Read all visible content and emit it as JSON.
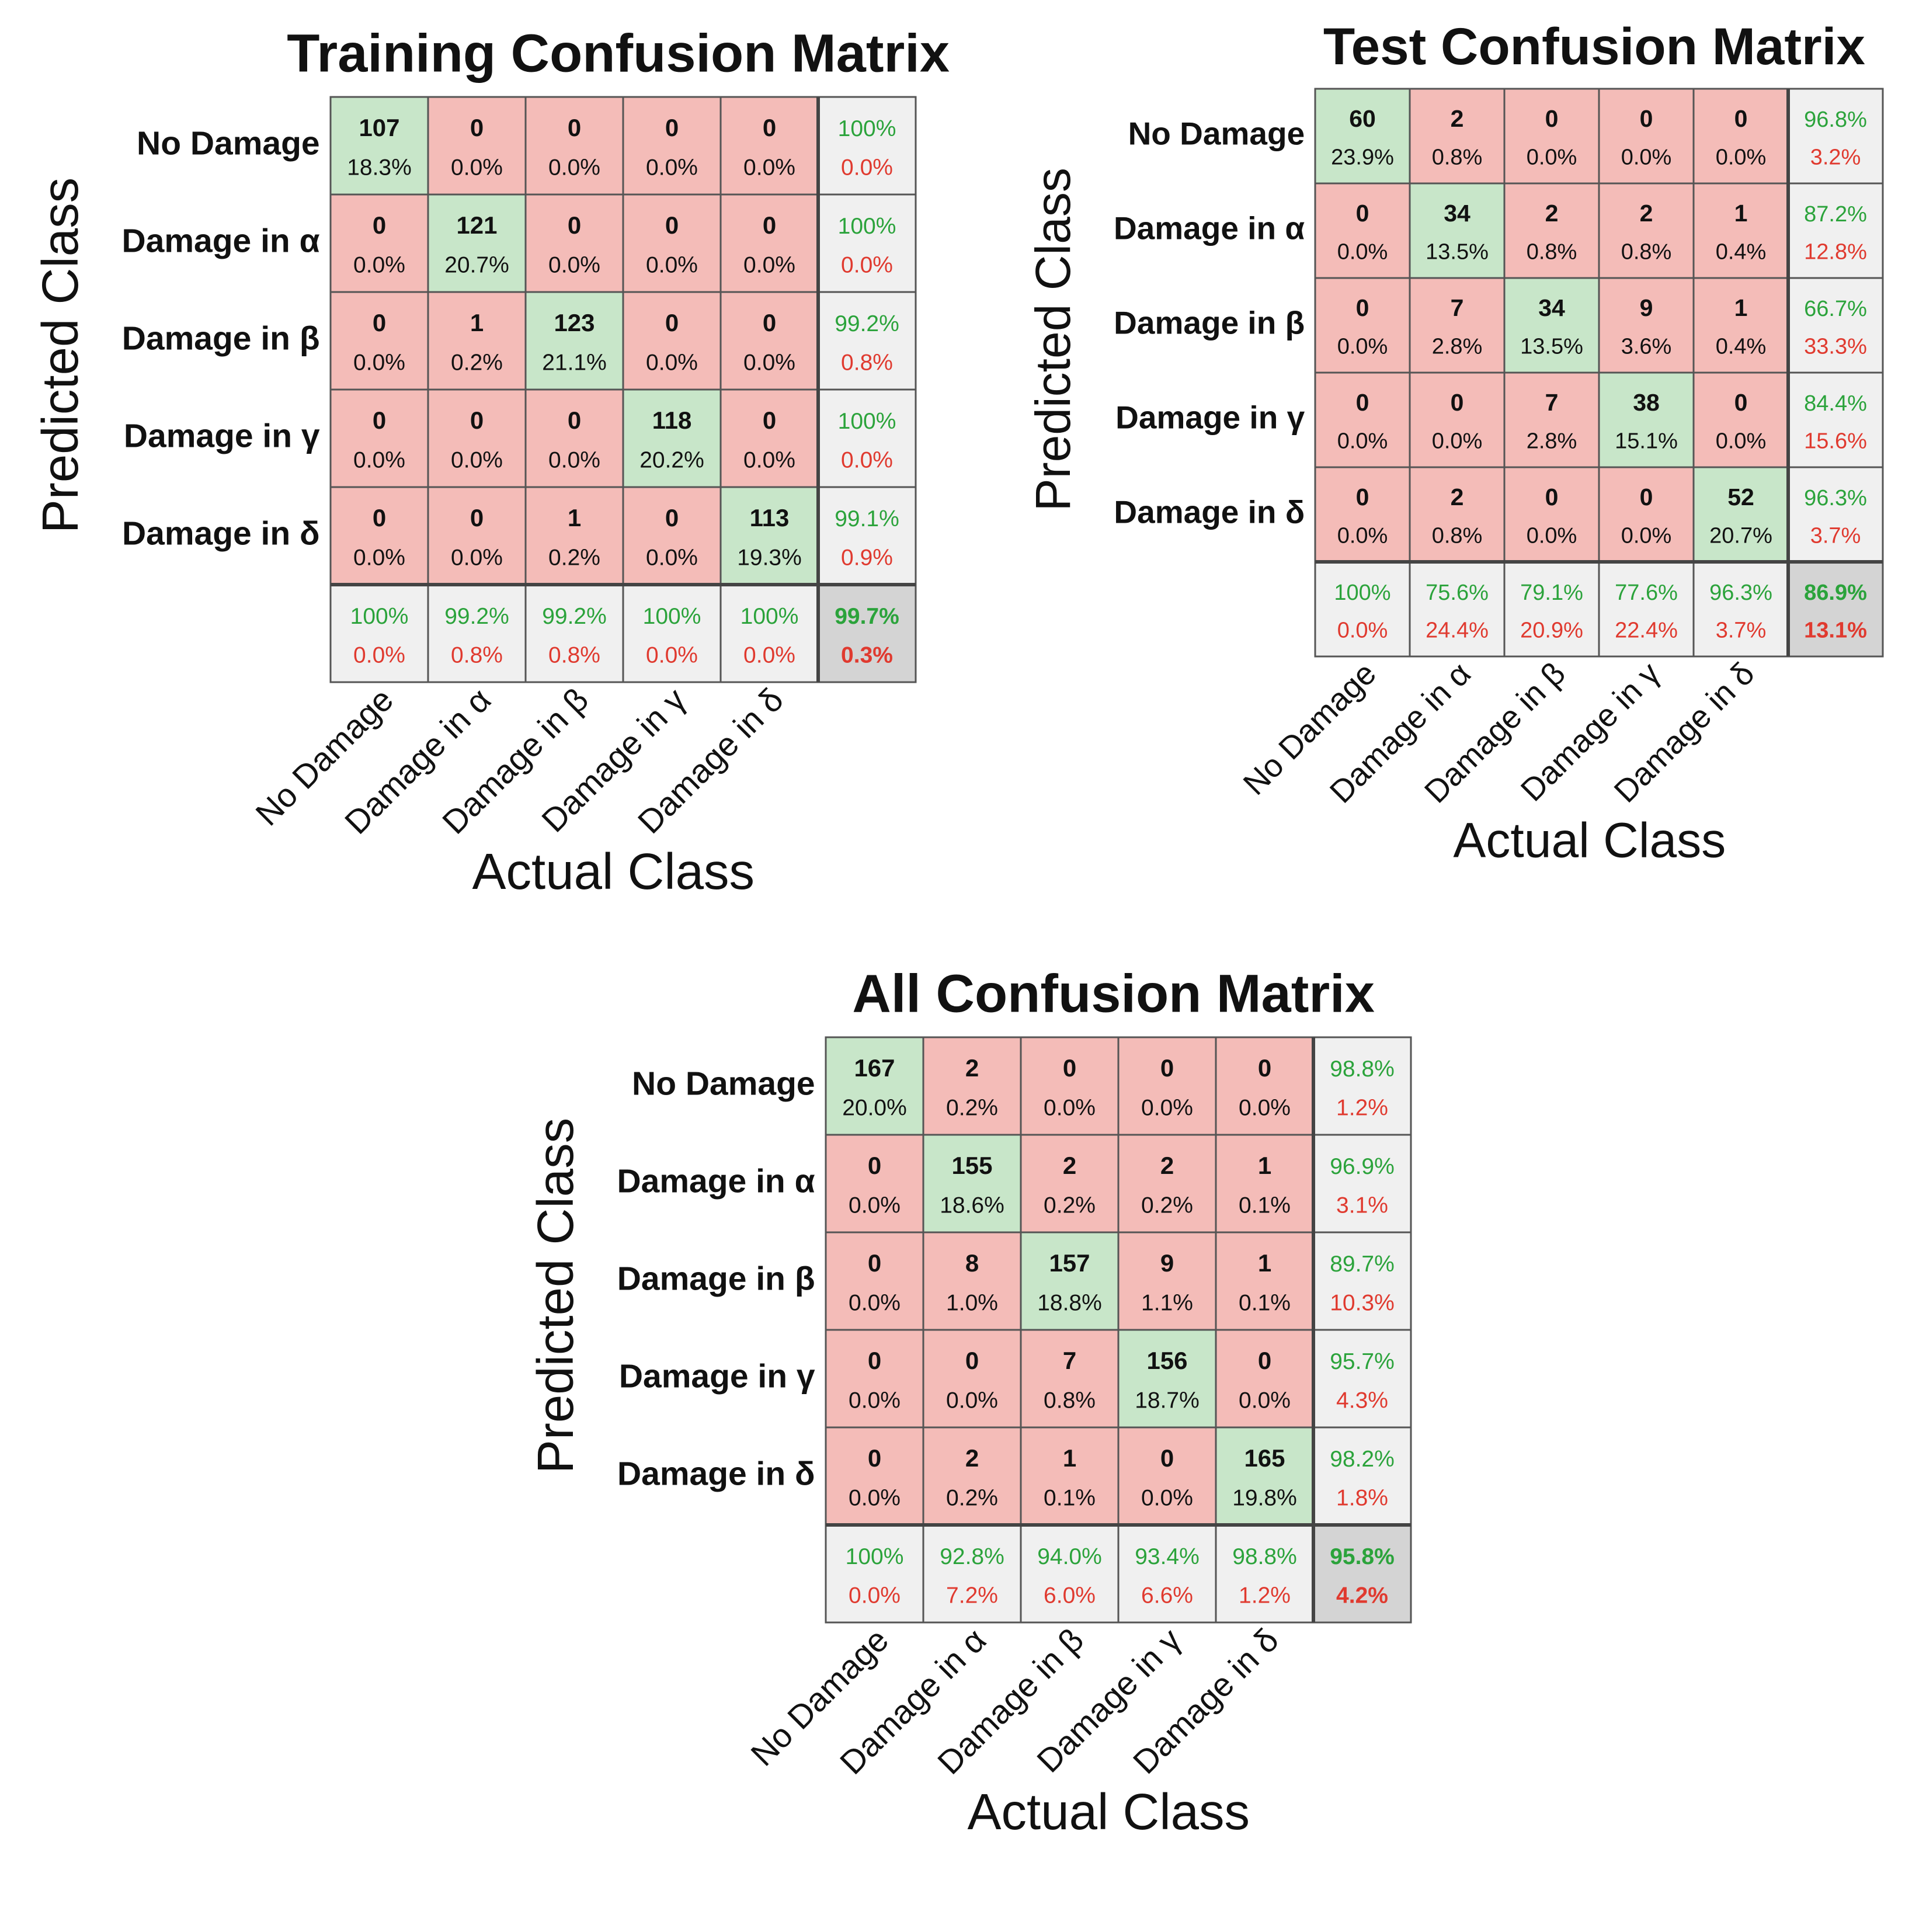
{
  "theme": {
    "correct_fill": "#c8e6c9",
    "error_fill": "#f4bcb8",
    "summary_fill": "#f0f0f0",
    "overall_fill": "#d4d4d4",
    "grid_color": "#555555",
    "text_color": "#111111",
    "green_text": "#2ba33b",
    "red_text": "#e03a2f"
  },
  "chart_data": [
    {
      "type": "heatmap",
      "title": "Training Confusion Matrix",
      "xlabel": "Actual Class",
      "ylabel": "Predicted Class",
      "row_labels": [
        "No Damage",
        "Damage in α",
        "Damage in β",
        "Damage in γ",
        "Damage in δ"
      ],
      "col_labels": [
        "No Damage",
        "Damage in α",
        "Damage in β",
        "Damage in γ",
        "Damage in δ"
      ],
      "counts": [
        [
          107,
          0,
          0,
          0,
          0
        ],
        [
          0,
          121,
          0,
          0,
          0
        ],
        [
          0,
          1,
          123,
          0,
          0
        ],
        [
          0,
          0,
          0,
          118,
          0
        ],
        [
          0,
          0,
          1,
          0,
          113
        ]
      ],
      "percents": [
        [
          "18.3%",
          "0.0%",
          "0.0%",
          "0.0%",
          "0.0%"
        ],
        [
          "0.0%",
          "20.7%",
          "0.0%",
          "0.0%",
          "0.0%"
        ],
        [
          "0.0%",
          "0.2%",
          "21.1%",
          "0.0%",
          "0.0%"
        ],
        [
          "0.0%",
          "0.0%",
          "0.0%",
          "20.2%",
          "0.0%"
        ],
        [
          "0.0%",
          "0.0%",
          "0.2%",
          "0.0%",
          "19.3%"
        ]
      ],
      "row_summary": [
        [
          "100%",
          "0.0%"
        ],
        [
          "100%",
          "0.0%"
        ],
        [
          "99.2%",
          "0.8%"
        ],
        [
          "100%",
          "0.0%"
        ],
        [
          "99.1%",
          "0.9%"
        ]
      ],
      "col_summary": [
        [
          "100%",
          "0.0%"
        ],
        [
          "99.2%",
          "0.8%"
        ],
        [
          "99.2%",
          "0.8%"
        ],
        [
          "100%",
          "0.0%"
        ],
        [
          "100%",
          "0.0%"
        ]
      ],
      "overall": [
        "99.7%",
        "0.3%"
      ]
    },
    {
      "type": "heatmap",
      "title": "Test Confusion Matrix",
      "xlabel": "Actual Class",
      "ylabel": "Predicted Class",
      "row_labels": [
        "No Damage",
        "Damage in α",
        "Damage in β",
        "Damage in γ",
        "Damage in δ"
      ],
      "col_labels": [
        "No Damage",
        "Damage in α",
        "Damage in β",
        "Damage in γ",
        "Damage in δ"
      ],
      "counts": [
        [
          60,
          2,
          0,
          0,
          0
        ],
        [
          0,
          34,
          2,
          2,
          1
        ],
        [
          0,
          7,
          34,
          9,
          1
        ],
        [
          0,
          0,
          7,
          38,
          0
        ],
        [
          0,
          2,
          0,
          0,
          52
        ]
      ],
      "percents": [
        [
          "23.9%",
          "0.8%",
          "0.0%",
          "0.0%",
          "0.0%"
        ],
        [
          "0.0%",
          "13.5%",
          "0.8%",
          "0.8%",
          "0.4%"
        ],
        [
          "0.0%",
          "2.8%",
          "13.5%",
          "3.6%",
          "0.4%"
        ],
        [
          "0.0%",
          "0.0%",
          "2.8%",
          "15.1%",
          "0.0%"
        ],
        [
          "0.0%",
          "0.8%",
          "0.0%",
          "0.0%",
          "20.7%"
        ]
      ],
      "row_summary": [
        [
          "96.8%",
          "3.2%"
        ],
        [
          "87.2%",
          "12.8%"
        ],
        [
          "66.7%",
          "33.3%"
        ],
        [
          "84.4%",
          "15.6%"
        ],
        [
          "96.3%",
          "3.7%"
        ]
      ],
      "col_summary": [
        [
          "100%",
          "0.0%"
        ],
        [
          "75.6%",
          "24.4%"
        ],
        [
          "79.1%",
          "20.9%"
        ],
        [
          "77.6%",
          "22.4%"
        ],
        [
          "96.3%",
          "3.7%"
        ]
      ],
      "overall": [
        "86.9%",
        "13.1%"
      ]
    },
    {
      "type": "heatmap",
      "title": "All Confusion Matrix",
      "xlabel": "Actual Class",
      "ylabel": "Predicted Class",
      "row_labels": [
        "No Damage",
        "Damage in α",
        "Damage in β",
        "Damage in γ",
        "Damage in δ"
      ],
      "col_labels": [
        "No Damage",
        "Damage in α",
        "Damage in β",
        "Damage in γ",
        "Damage in δ"
      ],
      "counts": [
        [
          167,
          2,
          0,
          0,
          0
        ],
        [
          0,
          155,
          2,
          2,
          1
        ],
        [
          0,
          8,
          157,
          9,
          1
        ],
        [
          0,
          0,
          7,
          156,
          0
        ],
        [
          0,
          2,
          1,
          0,
          165
        ]
      ],
      "percents": [
        [
          "20.0%",
          "0.2%",
          "0.0%",
          "0.0%",
          "0.0%"
        ],
        [
          "0.0%",
          "18.6%",
          "0.2%",
          "0.2%",
          "0.1%"
        ],
        [
          "0.0%",
          "1.0%",
          "18.8%",
          "1.1%",
          "0.1%"
        ],
        [
          "0.0%",
          "0.0%",
          "0.8%",
          "18.7%",
          "0.0%"
        ],
        [
          "0.0%",
          "0.2%",
          "0.1%",
          "0.0%",
          "19.8%"
        ]
      ],
      "row_summary": [
        [
          "98.8%",
          "1.2%"
        ],
        [
          "96.9%",
          "3.1%"
        ],
        [
          "89.7%",
          "10.3%"
        ],
        [
          "95.7%",
          "4.3%"
        ],
        [
          "98.2%",
          "1.8%"
        ]
      ],
      "col_summary": [
        [
          "100%",
          "0.0%"
        ],
        [
          "92.8%",
          "7.2%"
        ],
        [
          "94.0%",
          "6.0%"
        ],
        [
          "93.4%",
          "6.6%"
        ],
        [
          "98.8%",
          "1.2%"
        ]
      ],
      "overall": [
        "95.8%",
        "4.2%"
      ]
    }
  ]
}
